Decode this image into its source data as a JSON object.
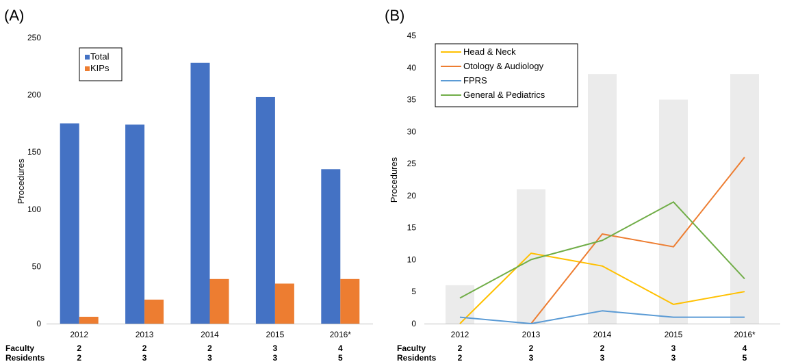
{
  "footer": {
    "row_labels": [
      "Faculty",
      "Residents"
    ],
    "faculty": [
      "2",
      "2",
      "2",
      "3",
      "4"
    ],
    "residents": [
      "2",
      "3",
      "3",
      "3",
      "5"
    ]
  },
  "chart_data": [
    {
      "panel": "(A)",
      "type": "bar",
      "categories": [
        "2012",
        "2013",
        "2014",
        "2015",
        "2016*"
      ],
      "ylabel": "Procedures",
      "ylim": [
        0,
        250
      ],
      "yticks": [
        0,
        50,
        100,
        150,
        200,
        250
      ],
      "grid": false,
      "legend_position": "top-left",
      "series": [
        {
          "name": "Total",
          "color": "#4472C4",
          "values": [
            175,
            174,
            228,
            198,
            135
          ]
        },
        {
          "name": "KIPs",
          "color": "#ED7D31",
          "values": [
            6,
            21,
            39,
            35,
            39
          ]
        }
      ]
    },
    {
      "panel": "(B)",
      "type": "line",
      "categories": [
        "2012",
        "2013",
        "2014",
        "2015",
        "2016*"
      ],
      "ylabel": "Procedures",
      "ylim": [
        0,
        45
      ],
      "yticks": [
        0,
        5,
        10,
        15,
        20,
        25,
        30,
        35,
        40,
        45
      ],
      "grid": false,
      "legend_position": "top-left",
      "background_bars": {
        "color": "#EBEBEB",
        "values": [
          6,
          21,
          39,
          35,
          39
        ]
      },
      "series": [
        {
          "name": "Head & Neck",
          "color": "#FFC000",
          "values": [
            0,
            11,
            9,
            3,
            5
          ]
        },
        {
          "name": "Otology & Audiology",
          "color": "#ED7D31",
          "values": [
            null,
            0,
            14,
            12,
            26
          ]
        },
        {
          "name": "FPRS",
          "color": "#5B9BD5",
          "values": [
            1,
            0,
            2,
            1,
            1
          ]
        },
        {
          "name": "General & Pediatrics",
          "color": "#70AD47",
          "values": [
            4,
            10,
            13,
            19,
            7
          ]
        }
      ]
    }
  ]
}
